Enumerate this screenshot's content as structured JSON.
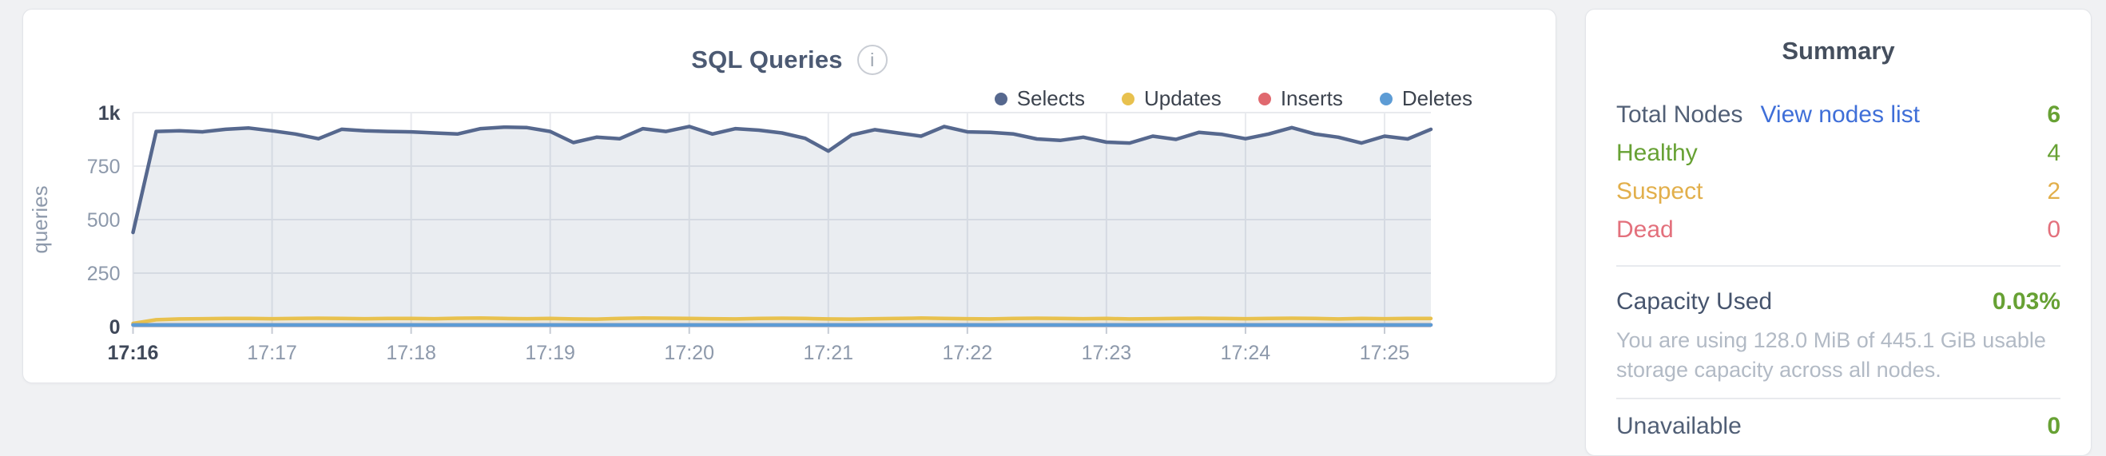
{
  "chart_panel": {
    "title": "SQL Queries",
    "info_icon_glyph": "i"
  },
  "chart_data": {
    "type": "area",
    "title": "SQL Queries",
    "ylabel": "queries",
    "xlabel": "",
    "ylim": [
      0,
      1000
    ],
    "grid": true,
    "legend_position": "top-right",
    "x_step_seconds": 10,
    "x_tick_labels": [
      "17:16",
      "17:17",
      "17:18",
      "17:19",
      "17:20",
      "17:21",
      "17:22",
      "17:23",
      "17:24",
      "17:25"
    ],
    "y_ticks": [
      {
        "value": 0,
        "label": "0",
        "emphasis": true
      },
      {
        "value": 250,
        "label": "250",
        "emphasis": false
      },
      {
        "value": 500,
        "label": "500",
        "emphasis": false
      },
      {
        "value": 750,
        "label": "750",
        "emphasis": false
      },
      {
        "value": 1000,
        "label": "1k",
        "emphasis": true
      }
    ],
    "series": [
      {
        "name": "Selects",
        "color": "#56688e",
        "fill_opacity": 0.12,
        "values": [
          440,
          912,
          915,
          910,
          922,
          928,
          915,
          900,
          878,
          922,
          915,
          912,
          910,
          905,
          900,
          925,
          932,
          930,
          912,
          860,
          885,
          878,
          925,
          912,
          935,
          900,
          925,
          918,
          905,
          880,
          820,
          895,
          920,
          905,
          890,
          935,
          910,
          908,
          900,
          877,
          870,
          885,
          862,
          858,
          890,
          875,
          908,
          898,
          878,
          900,
          930,
          900,
          885,
          858,
          890,
          877,
          922
        ]
      },
      {
        "name": "Updates",
        "color": "#e8c14e",
        "fill_opacity": 0.15,
        "values": [
          15,
          32,
          36,
          37,
          38,
          38,
          37,
          38,
          39,
          38,
          37,
          38,
          38,
          37,
          39,
          40,
          38,
          37,
          38,
          36,
          35,
          38,
          40,
          39,
          38,
          37,
          36,
          38,
          39,
          38,
          36,
          35,
          37,
          38,
          40,
          38,
          37,
          36,
          38,
          39,
          38,
          37,
          38,
          36,
          37,
          38,
          39,
          38,
          37,
          38,
          39,
          38,
          36,
          38,
          37,
          38,
          38
        ]
      },
      {
        "name": "Inserts",
        "color": "#e0696f",
        "fill_opacity": 0.0,
        "constant": 8
      },
      {
        "name": "Deletes",
        "color": "#5d9cd5",
        "fill_opacity": 0.15,
        "constant": 8
      }
    ]
  },
  "summary_panel": {
    "title": "Summary",
    "total_nodes": {
      "label": "Total Nodes",
      "link": "View nodes list",
      "value": "6"
    },
    "healthy": {
      "label": "Healthy",
      "value": "4"
    },
    "suspect": {
      "label": "Suspect",
      "value": "2"
    },
    "dead": {
      "label": "Dead",
      "value": "0"
    },
    "capacity": {
      "label": "Capacity Used",
      "value": "0.03%",
      "description": "You are using 128.0 MiB of 445.1 GiB usable storage capacity across all nodes."
    },
    "unavailable": {
      "label": "Unavailable",
      "value": "0"
    }
  },
  "colors": {
    "healthy_green": "#67a134",
    "suspect_yellow": "#e2af4b",
    "dead_red": "#e3707c",
    "link_blue": "#3f6fd8",
    "selects": "#56688e",
    "updates": "#e8c14e",
    "inserts": "#e0696f",
    "deletes": "#5d9cd5"
  }
}
